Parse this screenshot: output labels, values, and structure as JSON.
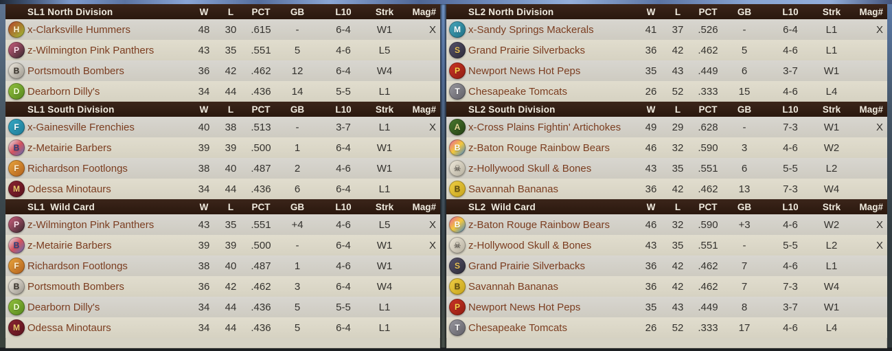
{
  "colors": {
    "header_bg": "#2e1b10",
    "header_text": "#f0ebdf",
    "row_dark": "#d2cfc6",
    "row_light": "#dcd8c9",
    "panel_bg": "#d5d2c4",
    "team_name_text": "#7b3d20",
    "stat_text": "#34322e",
    "divider_blue": "#6e92c4"
  },
  "columns": {
    "w": "W",
    "l": "L",
    "pct": "PCT",
    "gb": "GB",
    "l10": "L10",
    "strk": "Strk",
    "mag": "Mag#"
  },
  "panels": [
    {
      "id": "sl1",
      "sections": [
        {
          "title": "SL1 North Division",
          "teams": [
            {
              "name": "x-Clarksville Hummers",
              "icon": "hummingbird-logo",
              "logo": {
                "c1": "#b8432b",
                "c2": "#9dbb35",
                "fg": "#fff6d8",
                "glyph": "H"
              },
              "w": "48",
              "l": "30",
              "pct": ".615",
              "gb": "-",
              "l10": "6-4",
              "strk": "W1",
              "mag": "X"
            },
            {
              "name": "z-Wilmington Pink Panthers",
              "icon": "pink-panther-logo",
              "logo": {
                "c1": "#d06080",
                "c2": "#35262c",
                "fg": "#ffe4ee",
                "glyph": "P"
              },
              "w": "43",
              "l": "35",
              "pct": ".551",
              "gb": "5",
              "l10": "4-6",
              "strk": "L5",
              "mag": ""
            },
            {
              "name": "Portsmouth Bombers",
              "icon": "bomber-pinup-logo",
              "logo": {
                "c1": "#efeadf",
                "c2": "#9a958c",
                "fg": "#3a342c",
                "glyph": "B"
              },
              "w": "36",
              "l": "42",
              "pct": ".462",
              "gb": "12",
              "l10": "6-4",
              "strk": "W4",
              "mag": ""
            },
            {
              "name": "Dearborn Dilly's",
              "icon": "pickle-logo",
              "logo": {
                "c1": "#93c23d",
                "c2": "#55861d",
                "fg": "#f2ffd6",
                "glyph": "D"
              },
              "w": "34",
              "l": "44",
              "pct": ".436",
              "gb": "14",
              "l10": "5-5",
              "strk": "L1",
              "mag": ""
            }
          ]
        },
        {
          "title": "SL1 South Division",
          "teams": [
            {
              "name": "x-Gainesville Frenchies",
              "icon": "french-bulldog-logo",
              "logo": {
                "c1": "#35a8c5",
                "c2": "#1f7a95",
                "fg": "#ffffff",
                "glyph": "F"
              },
              "w": "40",
              "l": "38",
              "pct": ".513",
              "gb": "-",
              "l10": "3-7",
              "strk": "L1",
              "mag": "X"
            },
            {
              "name": "z-Metairie Barbers",
              "icon": "barber-pole-logo",
              "logo": {
                "c1": "#e9edf3",
                "c3": "#d4535f",
                "c2": "#5570b5",
                "fg": "#2d3f7a",
                "glyph": "B"
              },
              "w": "39",
              "l": "39",
              "pct": ".500",
              "gb": "1",
              "l10": "6-4",
              "strk": "W1",
              "mag": ""
            },
            {
              "name": "Richardson Footlongs",
              "icon": "hotdog-logo",
              "logo": {
                "c1": "#eaa63d",
                "c2": "#b05f1d",
                "fg": "#fff3d8",
                "glyph": "F"
              },
              "w": "38",
              "l": "40",
              "pct": ".487",
              "gb": "2",
              "l10": "4-6",
              "strk": "W1",
              "mag": ""
            },
            {
              "name": "Odessa Minotaurs",
              "icon": "minotaur-m-logo",
              "logo": {
                "c1": "#8c2431",
                "c2": "#5a131e",
                "fg": "#e8c96a",
                "glyph": "M"
              },
              "w": "34",
              "l": "44",
              "pct": ".436",
              "gb": "6",
              "l10": "6-4",
              "strk": "L1",
              "mag": ""
            }
          ]
        },
        {
          "title": "SL1  Wild Card",
          "teams": [
            {
              "name": "z-Wilmington Pink Panthers",
              "icon": "pink-panther-logo",
              "logo": {
                "c1": "#d06080",
                "c2": "#35262c",
                "fg": "#ffe4ee",
                "glyph": "P"
              },
              "w": "43",
              "l": "35",
              "pct": ".551",
              "gb": "+4",
              "l10": "4-6",
              "strk": "L5",
              "mag": "X"
            },
            {
              "name": "z-Metairie Barbers",
              "icon": "barber-pole-logo",
              "logo": {
                "c1": "#e9edf3",
                "c3": "#d4535f",
                "c2": "#5570b5",
                "fg": "#2d3f7a",
                "glyph": "B"
              },
              "w": "39",
              "l": "39",
              "pct": ".500",
              "gb": "-",
              "l10": "6-4",
              "strk": "W1",
              "mag": "X"
            },
            {
              "name": "Richardson Footlongs",
              "icon": "hotdog-logo",
              "logo": {
                "c1": "#eaa63d",
                "c2": "#b05f1d",
                "fg": "#fff3d8",
                "glyph": "F"
              },
              "w": "38",
              "l": "40",
              "pct": ".487",
              "gb": "1",
              "l10": "4-6",
              "strk": "W1",
              "mag": ""
            },
            {
              "name": "Portsmouth Bombers",
              "icon": "bomber-pinup-logo",
              "logo": {
                "c1": "#efeadf",
                "c2": "#9a958c",
                "fg": "#3a342c",
                "glyph": "B"
              },
              "w": "36",
              "l": "42",
              "pct": ".462",
              "gb": "3",
              "l10": "6-4",
              "strk": "W4",
              "mag": ""
            },
            {
              "name": "Dearborn Dilly's",
              "icon": "pickle-logo",
              "logo": {
                "c1": "#93c23d",
                "c2": "#55861d",
                "fg": "#f2ffd6",
                "glyph": "D"
              },
              "w": "34",
              "l": "44",
              "pct": ".436",
              "gb": "5",
              "l10": "5-5",
              "strk": "L1",
              "mag": ""
            },
            {
              "name": "Odessa Minotaurs",
              "icon": "minotaur-m-logo",
              "logo": {
                "c1": "#8c2431",
                "c2": "#5a131e",
                "fg": "#e8c96a",
                "glyph": "M"
              },
              "w": "34",
              "l": "44",
              "pct": ".436",
              "gb": "5",
              "l10": "6-4",
              "strk": "L1",
              "mag": ""
            }
          ]
        }
      ]
    },
    {
      "id": "sl2",
      "sections": [
        {
          "title": "SL2 North Division",
          "teams": [
            {
              "name": "x-Sandy Springs Mackerals",
              "icon": "mackerel-fish-logo",
              "logo": {
                "c1": "#49a8bc",
                "c2": "#1d6e85",
                "fg": "#ffffff",
                "glyph": "M"
              },
              "w": "41",
              "l": "37",
              "pct": ".526",
              "gb": "-",
              "l10": "6-4",
              "strk": "L1",
              "mag": "X"
            },
            {
              "name": "Grand Prairie Silverbacks",
              "icon": "gorilla-crown-logo",
              "logo": {
                "c1": "#57536b",
                "c2": "#2c2a38",
                "fg": "#e8c152",
                "glyph": "S"
              },
              "w": "36",
              "l": "42",
              "pct": ".462",
              "gb": "5",
              "l10": "4-6",
              "strk": "L1",
              "mag": ""
            },
            {
              "name": "Newport News Hot Peps",
              "icon": "hot-pepper-logo",
              "logo": {
                "c1": "#cc3526",
                "c2": "#8f1c12",
                "fg": "#f5d54a",
                "glyph": "P"
              },
              "w": "35",
              "l": "43",
              "pct": ".449",
              "gb": "6",
              "l10": "3-7",
              "strk": "W1",
              "mag": ""
            },
            {
              "name": "Chesapeake Tomcats",
              "icon": "tomcat-logo",
              "logo": {
                "c1": "#9a99a0",
                "c2": "#5f5e66",
                "fg": "#ffffff",
                "glyph": "T"
              },
              "w": "26",
              "l": "52",
              "pct": ".333",
              "gb": "15",
              "l10": "4-6",
              "strk": "L4",
              "mag": ""
            }
          ]
        },
        {
          "title": "SL2 South Division",
          "teams": [
            {
              "name": "x-Cross Plains Fightin' Artichokes",
              "icon": "artichoke-shield-logo",
              "logo": {
                "c1": "#4a7a2e",
                "c2": "#243f14",
                "fg": "#e8d89a",
                "glyph": "A"
              },
              "w": "49",
              "l": "29",
              "pct": ".628",
              "gb": "-",
              "l10": "7-3",
              "strk": "W1",
              "mag": "X"
            },
            {
              "name": "z-Baton Rouge Rainbow Bears",
              "icon": "rainbow-bear-logo",
              "logo": {
                "c1": "#e85c9e",
                "c3": "#f2c83c",
                "c2": "#3a7fd4",
                "fg": "#ffffff",
                "glyph": "B"
              },
              "w": "46",
              "l": "32",
              "pct": ".590",
              "gb": "3",
              "l10": "4-6",
              "strk": "W2",
              "mag": ""
            },
            {
              "name": "z-Hollywood Skull & Bones",
              "icon": "skull-and-bones-logo",
              "logo": {
                "c1": "#efe9da",
                "c2": "#b3ad9d",
                "fg": "#3a3530",
                "glyph": "☠"
              },
              "w": "43",
              "l": "35",
              "pct": ".551",
              "gb": "6",
              "l10": "5-5",
              "strk": "L2",
              "mag": ""
            },
            {
              "name": "Savannah Bananas",
              "icon": "banana-logo",
              "logo": {
                "c1": "#f0cf45",
                "c2": "#c5a31c",
                "fg": "#5f4c0e",
                "glyph": "B"
              },
              "w": "36",
              "l": "42",
              "pct": ".462",
              "gb": "13",
              "l10": "7-3",
              "strk": "W4",
              "mag": ""
            }
          ]
        },
        {
          "title": "SL2  Wild Card",
          "teams": [
            {
              "name": "z-Baton Rouge Rainbow Bears",
              "icon": "rainbow-bear-logo",
              "logo": {
                "c1": "#e85c9e",
                "c3": "#f2c83c",
                "c2": "#3a7fd4",
                "fg": "#ffffff",
                "glyph": "B"
              },
              "w": "46",
              "l": "32",
              "pct": ".590",
              "gb": "+3",
              "l10": "4-6",
              "strk": "W2",
              "mag": "X"
            },
            {
              "name": "z-Hollywood Skull & Bones",
              "icon": "skull-and-bones-logo",
              "logo": {
                "c1": "#efe9da",
                "c2": "#b3ad9d",
                "fg": "#3a3530",
                "glyph": "☠"
              },
              "w": "43",
              "l": "35",
              "pct": ".551",
              "gb": "-",
              "l10": "5-5",
              "strk": "L2",
              "mag": "X"
            },
            {
              "name": "Grand Prairie Silverbacks",
              "icon": "gorilla-crown-logo",
              "logo": {
                "c1": "#57536b",
                "c2": "#2c2a38",
                "fg": "#e8c152",
                "glyph": "S"
              },
              "w": "36",
              "l": "42",
              "pct": ".462",
              "gb": "7",
              "l10": "4-6",
              "strk": "L1",
              "mag": ""
            },
            {
              "name": "Savannah Bananas",
              "icon": "banana-logo",
              "logo": {
                "c1": "#f0cf45",
                "c2": "#c5a31c",
                "fg": "#5f4c0e",
                "glyph": "B"
              },
              "w": "36",
              "l": "42",
              "pct": ".462",
              "gb": "7",
              "l10": "7-3",
              "strk": "W4",
              "mag": ""
            },
            {
              "name": "Newport News Hot Peps",
              "icon": "hot-pepper-logo",
              "logo": {
                "c1": "#cc3526",
                "c2": "#8f1c12",
                "fg": "#f5d54a",
                "glyph": "P"
              },
              "w": "35",
              "l": "43",
              "pct": ".449",
              "gb": "8",
              "l10": "3-7",
              "strk": "W1",
              "mag": ""
            },
            {
              "name": "Chesapeake Tomcats",
              "icon": "tomcat-logo",
              "logo": {
                "c1": "#9a99a0",
                "c2": "#5f5e66",
                "fg": "#ffffff",
                "glyph": "T"
              },
              "w": "26",
              "l": "52",
              "pct": ".333",
              "gb": "17",
              "l10": "4-6",
              "strk": "L4",
              "mag": ""
            }
          ]
        }
      ]
    }
  ]
}
